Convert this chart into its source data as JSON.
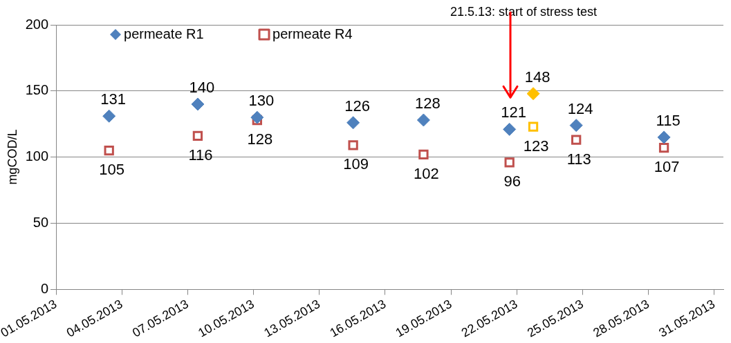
{
  "chart_data": {
    "type": "scatter",
    "ylabel": "mgCOD/L",
    "x": [
      "2013-05-03T10:00",
      "2013-05-07T11:00",
      "2013-05-10T04:00",
      "2013-05-14T13:00",
      "2013-05-17T18:00",
      "2013-05-21T16:00",
      "2013-05-22T18:00",
      "2013-05-24T17:00",
      "2013-05-28T17:00"
    ],
    "series": [
      {
        "name": "permeate R1",
        "color": "#4f81bd",
        "marker": "diamond",
        "colors": [
          "#4f81bd",
          "#4f81bd",
          "#4f81bd",
          "#4f81bd",
          "#4f81bd",
          "#4f81bd",
          "#ffc000",
          "#4f81bd",
          "#4f81bd"
        ],
        "values": [
          131,
          140,
          130,
          126,
          128,
          121,
          148,
          124,
          115
        ]
      },
      {
        "name": "permeate R4",
        "color": "#c0504d",
        "marker": "square",
        "colors": [
          "#c0504d",
          "#c0504d",
          "#c0504d",
          "#c0504d",
          "#c0504d",
          "#c0504d",
          "#ffc000",
          "#c0504d",
          "#c0504d"
        ],
        "values": [
          105,
          116,
          128,
          109,
          102,
          96,
          123,
          113,
          107
        ]
      }
    ],
    "xlim": [
      "2013-05-01",
      "2013-05-31T10:00"
    ],
    "xticks": [
      {
        "value": "2013-05-01",
        "label": "01.05.2013"
      },
      {
        "value": "2013-05-04",
        "label": "04.05.2013"
      },
      {
        "value": "2013-05-07",
        "label": "07.05.2013"
      },
      {
        "value": "2013-05-10",
        "label": "10.05.2013"
      },
      {
        "value": "2013-05-13",
        "label": "13.05.2013"
      },
      {
        "value": "2013-05-16",
        "label": "16.05.2013"
      },
      {
        "value": "2013-05-19",
        "label": "19.05.2013"
      },
      {
        "value": "2013-05-22",
        "label": "22.05.2013"
      },
      {
        "value": "2013-05-25",
        "label": "25.05.2013"
      },
      {
        "value": "2013-05-28",
        "label": "28.05.2013"
      },
      {
        "value": "2013-05-31",
        "label": "31.05.2013"
      }
    ],
    "ylim": [
      0,
      200
    ],
    "yticks": [
      0,
      50,
      100,
      150,
      200
    ],
    "grid": "y",
    "legend": "top left",
    "data_labels": true,
    "ref_lines": [
      {
        "axis": "x",
        "value": "2013-05-21T17:00",
        "label": "21.5.13: start of stress test",
        "color": "#ff0000"
      }
    ]
  }
}
